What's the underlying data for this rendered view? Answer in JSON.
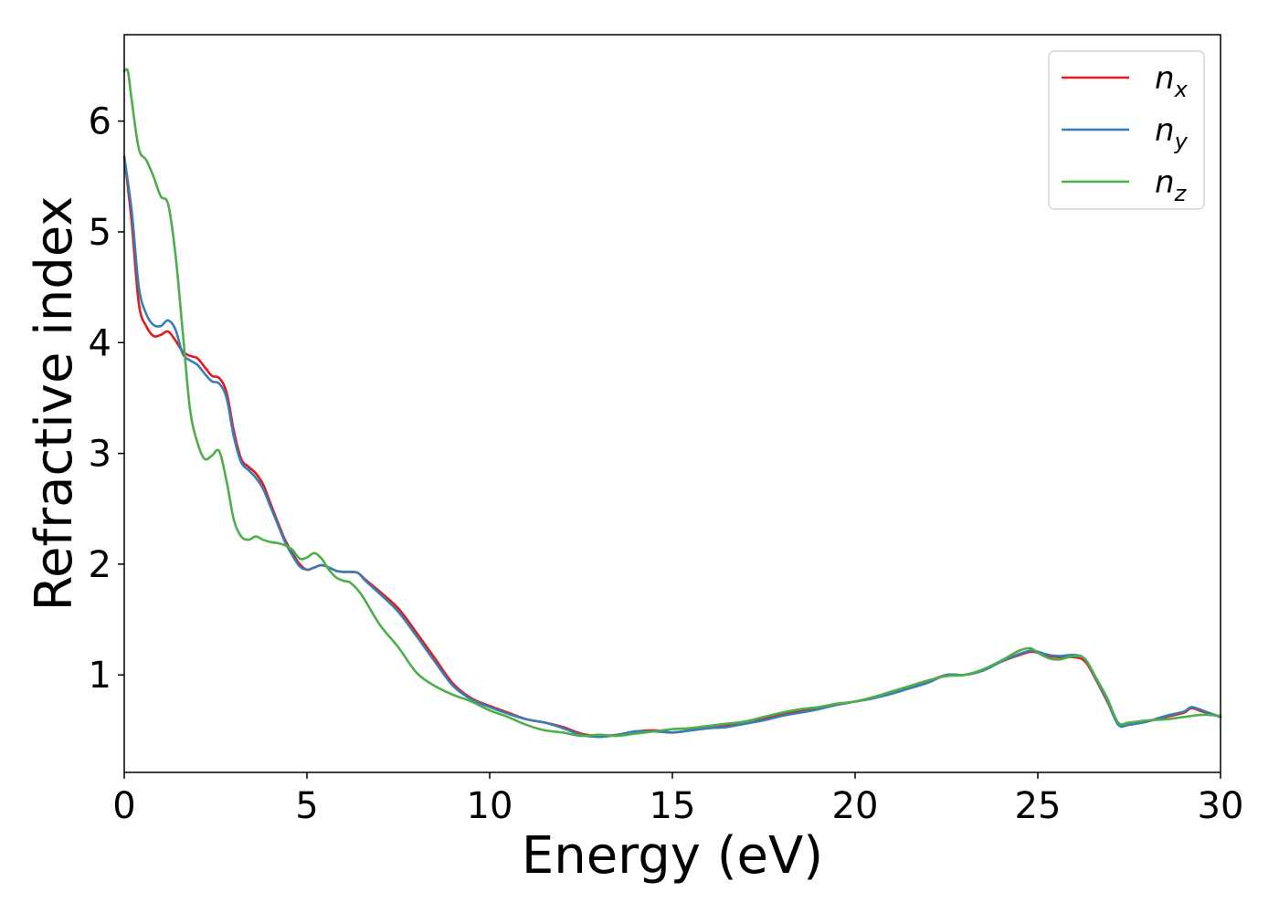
{
  "chart_data": {
    "type": "line",
    "title": "",
    "xlabel": "Energy (eV)",
    "ylabel": "Refractive index",
    "xlim": [
      0,
      30
    ],
    "ylim": [
      0.12,
      6.78
    ],
    "xticks": [
      0,
      5,
      10,
      15,
      20,
      25,
      30
    ],
    "yticks": [
      1,
      2,
      3,
      4,
      5,
      6
    ],
    "grid": false,
    "legend_position": "top-right",
    "series": [
      {
        "name": "n",
        "subscript": "x",
        "color": "#e41a1c",
        "x": [
          0,
          0.2,
          0.4,
          0.6,
          0.8,
          1.0,
          1.2,
          1.4,
          1.6,
          1.8,
          2.0,
          2.2,
          2.4,
          2.6,
          2.8,
          3.0,
          3.2,
          3.4,
          3.6,
          3.8,
          4.0,
          4.2,
          4.4,
          4.6,
          4.8,
          5.0,
          5.2,
          5.4,
          5.6,
          5.8,
          6.0,
          6.2,
          6.4,
          6.6,
          7.0,
          7.5,
          8.0,
          8.5,
          9.0,
          9.5,
          10.0,
          10.5,
          11.0,
          11.5,
          12.0,
          12.5,
          13.0,
          13.5,
          14.0,
          14.5,
          15.0,
          15.5,
          16.0,
          16.5,
          17.0,
          17.5,
          18.0,
          18.5,
          19.0,
          19.5,
          20.0,
          20.5,
          21.0,
          21.5,
          22.0,
          22.5,
          23.0,
          23.5,
          24.0,
          24.5,
          24.8,
          25.0,
          25.3,
          25.6,
          26.0,
          26.3,
          26.6,
          26.9,
          27.2,
          27.5,
          28.0,
          28.5,
          29.0,
          29.2,
          29.5,
          30.0
        ],
        "y": [
          5.68,
          5.1,
          4.35,
          4.15,
          4.06,
          4.07,
          4.1,
          4.02,
          3.92,
          3.88,
          3.86,
          3.78,
          3.7,
          3.68,
          3.55,
          3.2,
          2.95,
          2.88,
          2.82,
          2.72,
          2.55,
          2.38,
          2.22,
          2.1,
          2.0,
          1.95,
          1.97,
          1.99,
          1.97,
          1.94,
          1.93,
          1.93,
          1.92,
          1.86,
          1.75,
          1.6,
          1.38,
          1.15,
          0.92,
          0.79,
          0.72,
          0.66,
          0.6,
          0.57,
          0.53,
          0.47,
          0.45,
          0.46,
          0.49,
          0.5,
          0.48,
          0.5,
          0.52,
          0.54,
          0.56,
          0.6,
          0.64,
          0.67,
          0.7,
          0.73,
          0.76,
          0.79,
          0.84,
          0.88,
          0.94,
          1.0,
          1.0,
          1.04,
          1.12,
          1.18,
          1.21,
          1.2,
          1.17,
          1.16,
          1.16,
          1.12,
          0.95,
          0.76,
          0.56,
          0.55,
          0.58,
          0.62,
          0.66,
          0.7,
          0.67,
          0.62
        ]
      },
      {
        "name": "n",
        "subscript": "y",
        "color": "#377eb8",
        "x": [
          0,
          0.2,
          0.4,
          0.6,
          0.8,
          1.0,
          1.2,
          1.4,
          1.6,
          1.8,
          2.0,
          2.2,
          2.4,
          2.6,
          2.8,
          3.0,
          3.2,
          3.4,
          3.6,
          3.8,
          4.0,
          4.2,
          4.4,
          4.6,
          4.8,
          5.0,
          5.2,
          5.4,
          5.6,
          5.8,
          6.0,
          6.2,
          6.4,
          6.6,
          7.0,
          7.5,
          8.0,
          8.5,
          9.0,
          9.5,
          10.0,
          10.5,
          11.0,
          11.5,
          12.0,
          12.5,
          13.0,
          13.5,
          14.0,
          14.5,
          15.0,
          15.5,
          16.0,
          16.5,
          17.0,
          17.5,
          18.0,
          18.5,
          19.0,
          19.5,
          20.0,
          20.5,
          21.0,
          21.5,
          22.0,
          22.5,
          23.0,
          23.5,
          24.0,
          24.5,
          24.8,
          25.0,
          25.3,
          25.6,
          26.0,
          26.3,
          26.6,
          26.9,
          27.2,
          27.5,
          28.0,
          28.5,
          29.0,
          29.2,
          29.5,
          30.0
        ],
        "y": [
          5.68,
          5.2,
          4.5,
          4.26,
          4.16,
          4.15,
          4.2,
          4.12,
          3.9,
          3.84,
          3.8,
          3.72,
          3.65,
          3.63,
          3.5,
          3.15,
          2.92,
          2.85,
          2.78,
          2.68,
          2.52,
          2.36,
          2.2,
          2.08,
          1.98,
          1.95,
          1.97,
          1.99,
          1.97,
          1.94,
          1.93,
          1.93,
          1.92,
          1.85,
          1.73,
          1.57,
          1.35,
          1.12,
          0.9,
          0.78,
          0.71,
          0.65,
          0.6,
          0.57,
          0.52,
          0.46,
          0.44,
          0.46,
          0.49,
          0.49,
          0.48,
          0.5,
          0.52,
          0.53,
          0.56,
          0.59,
          0.63,
          0.66,
          0.69,
          0.73,
          0.76,
          0.79,
          0.83,
          0.88,
          0.93,
          1.0,
          1.0,
          1.04,
          1.12,
          1.19,
          1.22,
          1.21,
          1.18,
          1.17,
          1.18,
          1.14,
          0.96,
          0.77,
          0.55,
          0.55,
          0.58,
          0.63,
          0.67,
          0.71,
          0.68,
          0.62
        ]
      },
      {
        "name": "n",
        "subscript": "z",
        "color": "#4daf4a",
        "x": [
          0,
          0.1,
          0.2,
          0.4,
          0.6,
          0.8,
          1.0,
          1.2,
          1.4,
          1.6,
          1.8,
          2.0,
          2.2,
          2.4,
          2.6,
          2.8,
          3.0,
          3.2,
          3.4,
          3.6,
          3.8,
          4.0,
          4.2,
          4.4,
          4.6,
          4.8,
          5.0,
          5.2,
          5.4,
          5.6,
          5.8,
          6.0,
          6.2,
          6.5,
          7.0,
          7.5,
          8.0,
          8.5,
          9.0,
          9.5,
          10.0,
          10.5,
          11.0,
          11.5,
          12.0,
          12.5,
          13.0,
          13.5,
          14.0,
          14.5,
          15.0,
          15.5,
          16.0,
          16.5,
          17.0,
          17.5,
          18.0,
          18.5,
          19.0,
          19.5,
          20.0,
          20.5,
          21.0,
          21.5,
          22.0,
          22.5,
          23.0,
          23.5,
          24.0,
          24.5,
          24.8,
          25.0,
          25.3,
          25.6,
          26.0,
          26.3,
          26.6,
          26.9,
          27.2,
          27.5,
          28.0,
          28.5,
          29.0,
          29.5,
          30.0
        ],
        "y": [
          6.45,
          6.45,
          6.2,
          5.75,
          5.65,
          5.5,
          5.32,
          5.25,
          4.8,
          4.1,
          3.4,
          3.1,
          2.95,
          2.98,
          3.02,
          2.75,
          2.4,
          2.25,
          2.22,
          2.25,
          2.22,
          2.2,
          2.19,
          2.17,
          2.13,
          2.05,
          2.06,
          2.1,
          2.05,
          1.95,
          1.88,
          1.85,
          1.83,
          1.72,
          1.45,
          1.25,
          1.02,
          0.9,
          0.82,
          0.76,
          0.68,
          0.62,
          0.55,
          0.5,
          0.48,
          0.45,
          0.46,
          0.45,
          0.47,
          0.49,
          0.51,
          0.52,
          0.54,
          0.56,
          0.58,
          0.62,
          0.66,
          0.69,
          0.71,
          0.74,
          0.76,
          0.8,
          0.85,
          0.9,
          0.95,
          0.99,
          1.0,
          1.05,
          1.13,
          1.22,
          1.24,
          1.2,
          1.15,
          1.14,
          1.17,
          1.14,
          0.97,
          0.79,
          0.57,
          0.57,
          0.59,
          0.6,
          0.62,
          0.64,
          0.63
        ]
      }
    ]
  }
}
